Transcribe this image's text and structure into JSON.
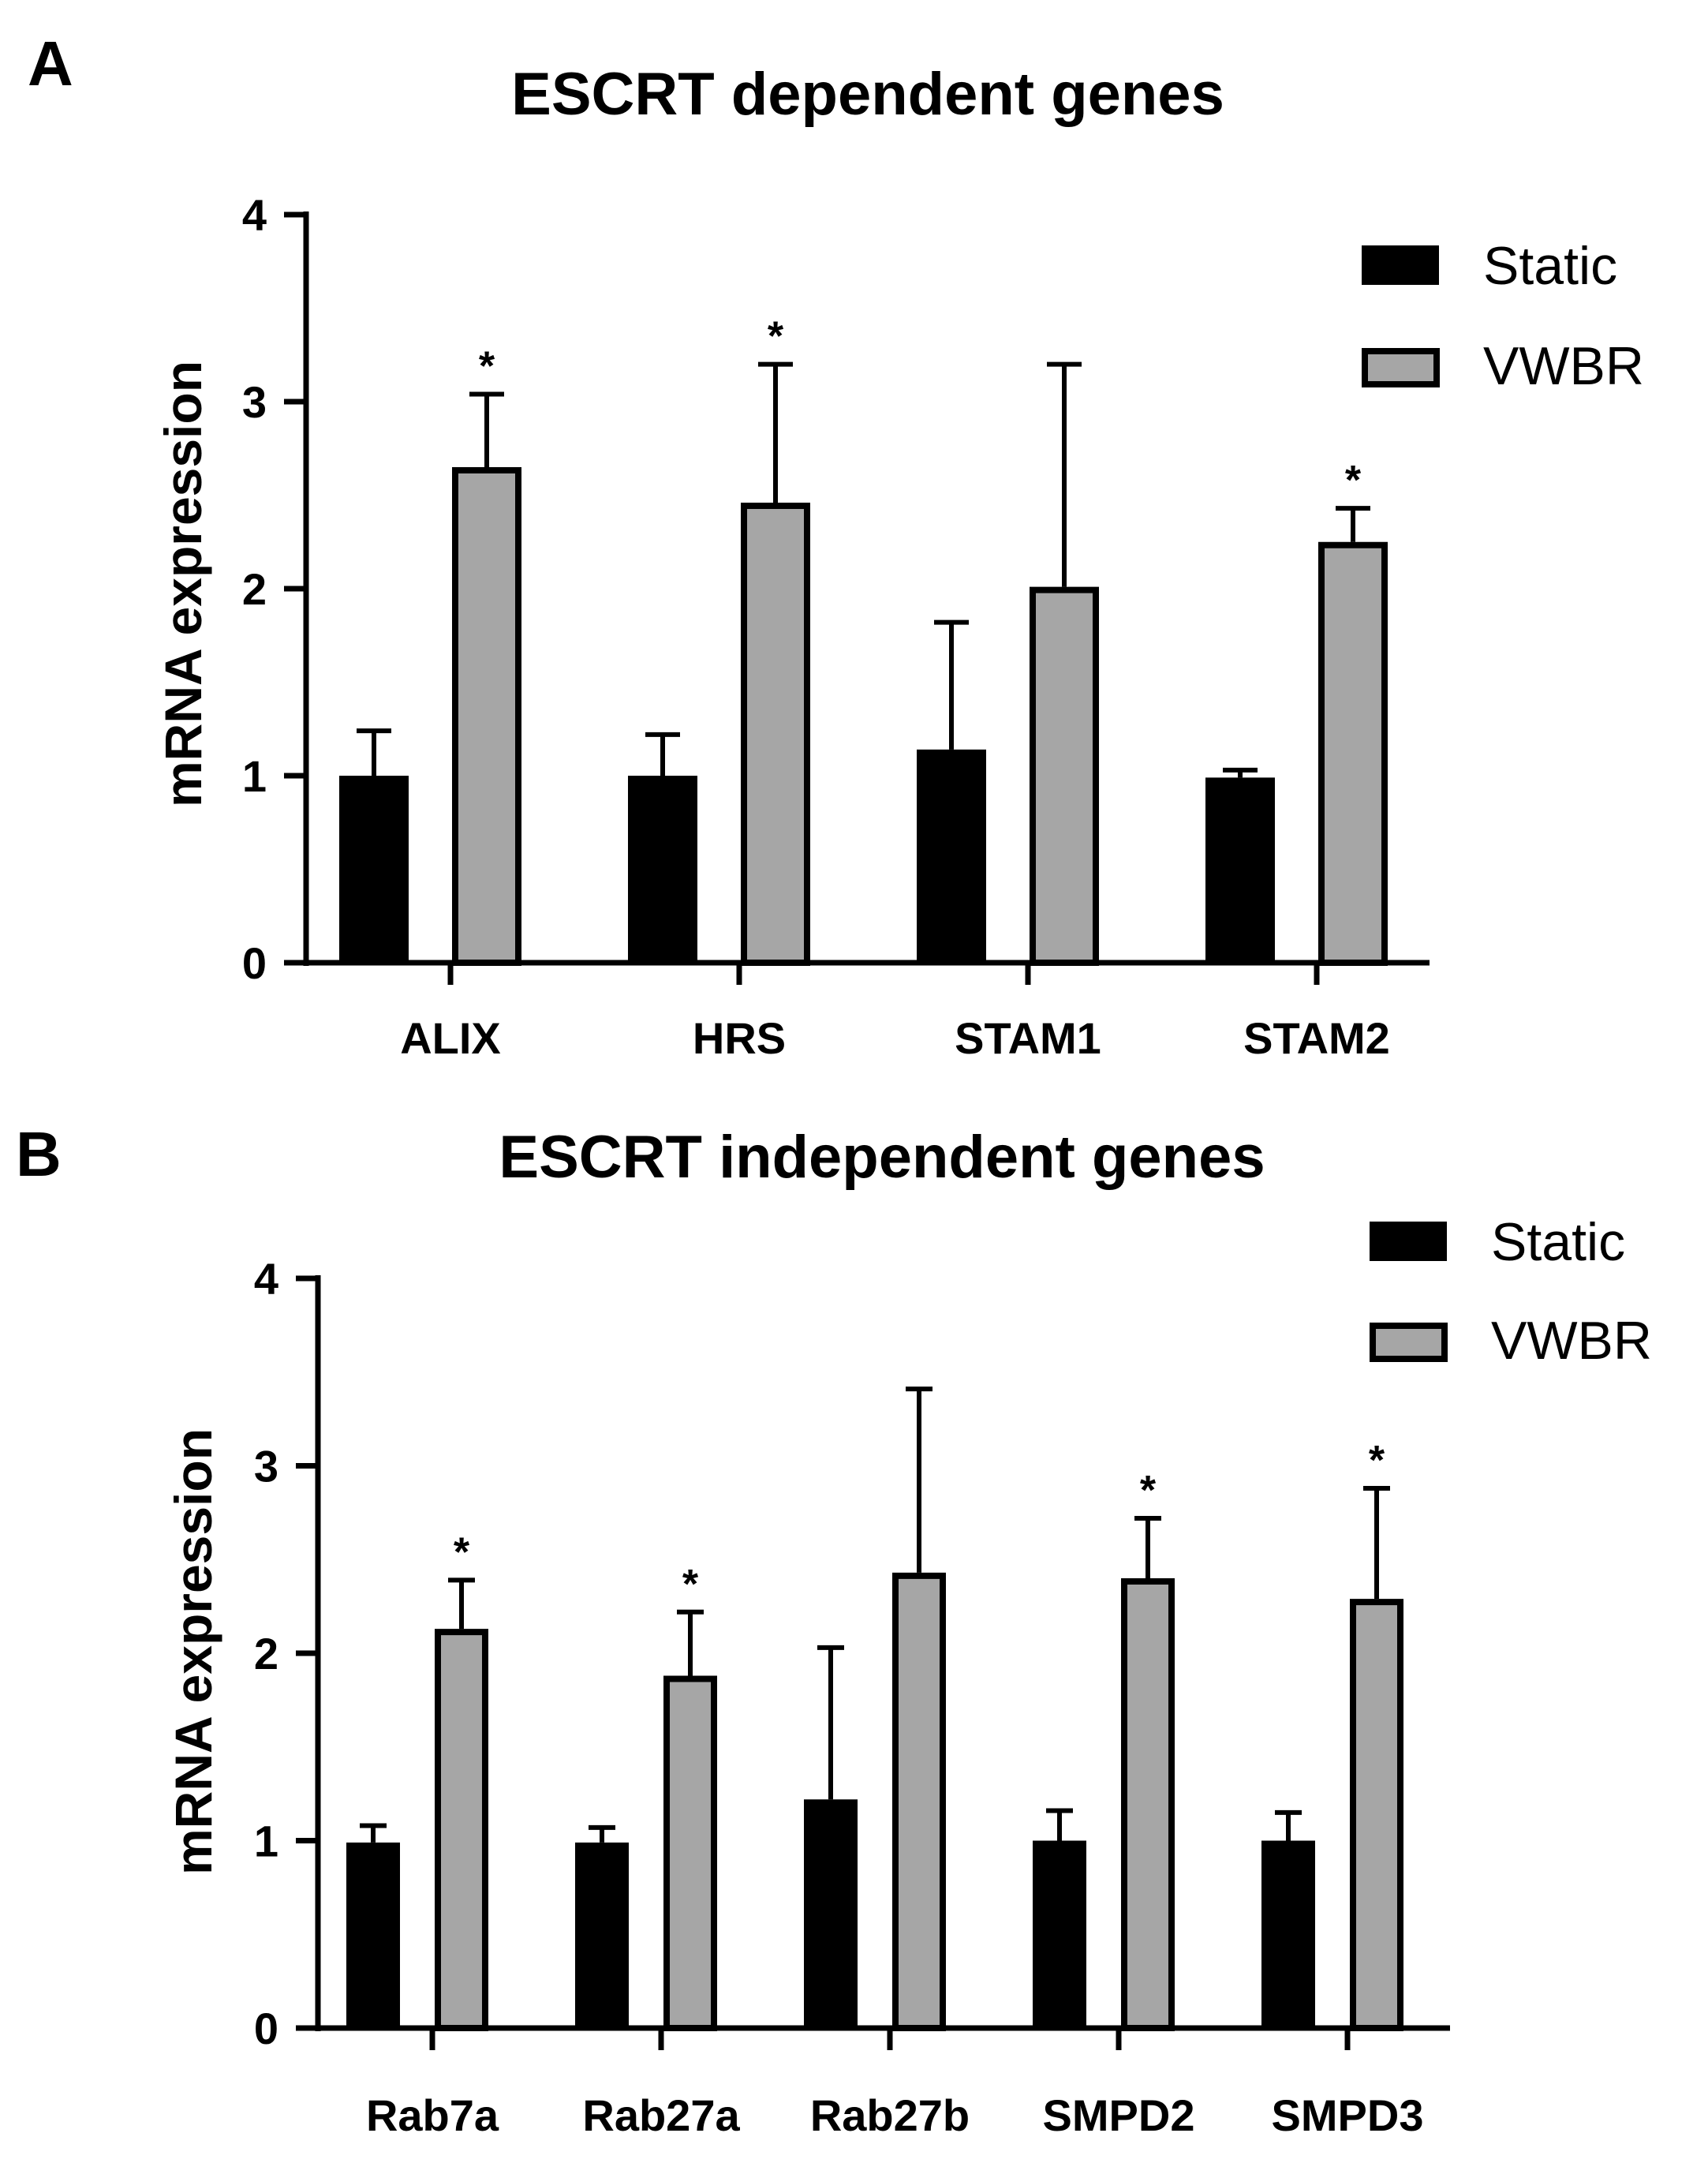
{
  "chart_data": [
    {
      "panel": "A",
      "type": "bar",
      "title": "ESCRT dependent genes",
      "xlabel": "",
      "ylabel": "mRNA expression",
      "ylim": [
        0,
        4
      ],
      "yticks": [
        0,
        1,
        2,
        3,
        4
      ],
      "grid": false,
      "legend_position": "top-right",
      "categories": [
        "ALIX",
        "HRS",
        "STAM1",
        "STAM2"
      ],
      "series": [
        {
          "name": "Static",
          "color": "#000000",
          "values": [
            1.0,
            1.0,
            1.14,
            0.99
          ],
          "error": [
            0.24,
            0.22,
            0.68,
            0.04
          ]
        },
        {
          "name": "VWBR",
          "color": "#a6a6a6",
          "values": [
            2.65,
            2.46,
            2.01,
            2.25
          ],
          "error": [
            0.39,
            0.74,
            1.19,
            0.18
          ]
        }
      ],
      "significance": [
        "*",
        "*",
        "",
        "*"
      ]
    },
    {
      "panel": "B",
      "type": "bar",
      "title": "ESCRT independent genes",
      "xlabel": "",
      "ylabel": "mRNA expression",
      "ylim": [
        0,
        4
      ],
      "yticks": [
        0,
        1,
        2,
        3,
        4
      ],
      "grid": false,
      "legend_position": "top-right",
      "categories": [
        "Rab7a",
        "Rab27a",
        "Rab27b",
        "SMPD2",
        "SMPD3"
      ],
      "series": [
        {
          "name": "Static",
          "color": "#000000",
          "values": [
            0.99,
            0.99,
            1.22,
            1.0,
            1.0
          ],
          "error": [
            0.09,
            0.08,
            0.81,
            0.16,
            0.15
          ]
        },
        {
          "name": "VWBR",
          "color": "#a6a6a6",
          "values": [
            2.13,
            1.88,
            2.43,
            2.4,
            2.29
          ],
          "error": [
            0.26,
            0.34,
            0.98,
            0.32,
            0.59
          ]
        }
      ],
      "significance": [
        "*",
        "*",
        "",
        "*",
        "*"
      ]
    }
  ]
}
